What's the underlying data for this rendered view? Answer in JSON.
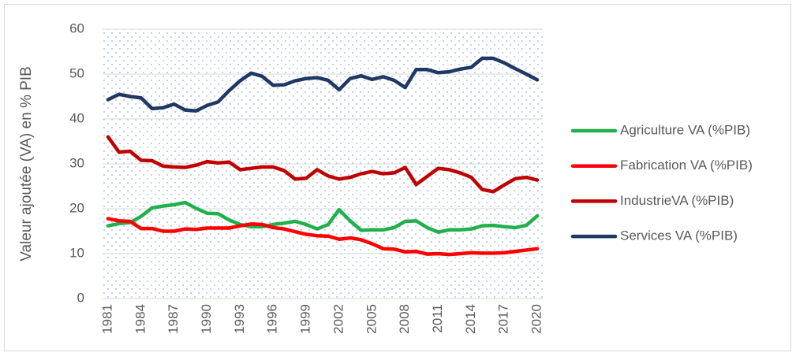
{
  "chart_data": {
    "type": "line",
    "y_label": "Valeur ajoutée (VA) en % PIB",
    "categories": [
      1981,
      null,
      null,
      1984,
      null,
      null,
      1987,
      null,
      null,
      1990,
      null,
      null,
      1993,
      null,
      null,
      1996,
      null,
      null,
      1999,
      null,
      null,
      2002,
      null,
      null,
      2005,
      null,
      null,
      2008,
      null,
      null,
      2011,
      null,
      null,
      2014,
      null,
      null,
      2017,
      null,
      null,
      2020
    ],
    "series": [
      {
        "name": "Agriculture VA (%PIB)",
        "color": "#21b04b",
        "values": [
          16.2,
          16.7,
          16.9,
          18.3,
          20.2,
          20.6,
          20.9,
          21.4,
          20.1,
          19.0,
          18.9,
          17.5,
          16.5,
          16.0,
          16.0,
          16.5,
          16.8,
          17.2,
          16.5,
          15.5,
          16.5,
          19.8,
          17.3,
          15.2,
          15.3,
          15.3,
          15.8,
          17.2,
          17.3,
          15.8,
          14.8,
          15.3,
          15.3,
          15.5,
          16.2,
          16.3,
          16.0,
          15.8,
          16.3,
          18.4
        ]
      },
      {
        "name": "Fabrication VA (%PIB)",
        "color": "#ff0000",
        "values": [
          17.8,
          17.3,
          17.2,
          15.6,
          15.6,
          15.0,
          15.0,
          15.5,
          15.4,
          15.7,
          15.7,
          15.7,
          16.2,
          16.6,
          16.5,
          15.8,
          15.5,
          14.9,
          14.3,
          14.0,
          13.9,
          13.2,
          13.5,
          13.1,
          12.2,
          11.1,
          11.0,
          10.4,
          10.5,
          9.9,
          10.0,
          9.8,
          10.0,
          10.2,
          10.1,
          10.1,
          10.2,
          10.5,
          10.8,
          11.1
        ]
      },
      {
        "name": "IndustrieVA (%PIB)",
        "color": "#c00000",
        "values": [
          36.0,
          32.6,
          32.8,
          30.8,
          30.7,
          29.5,
          29.3,
          29.2,
          29.7,
          30.5,
          30.2,
          30.4,
          28.7,
          29.0,
          29.3,
          29.3,
          28.5,
          26.6,
          26.8,
          28.7,
          27.3,
          26.6,
          27.0,
          27.8,
          28.3,
          27.8,
          28.0,
          29.2,
          25.4,
          27.2,
          29.0,
          28.7,
          28.0,
          27.0,
          24.3,
          23.8,
          25.3,
          26.7,
          27.0,
          26.4
        ]
      },
      {
        "name": "Services VA (%PIB)",
        "color": "#1f3864",
        "values": [
          44.3,
          45.5,
          45.0,
          44.7,
          42.3,
          42.5,
          43.3,
          42.0,
          41.8,
          43.0,
          43.8,
          46.3,
          48.5,
          50.2,
          49.5,
          47.5,
          47.6,
          48.5,
          49.0,
          49.2,
          48.6,
          46.5,
          49.0,
          49.6,
          48.8,
          49.4,
          48.6,
          47.0,
          51.0,
          51.0,
          50.3,
          50.5,
          51.1,
          51.5,
          53.5,
          53.5,
          52.5,
          51.2,
          50.0,
          48.7
        ]
      }
    ],
    "ylim": [
      0,
      60
    ],
    "yticks": [
      0,
      10,
      20,
      30,
      40,
      50,
      60
    ],
    "grid": true,
    "legend": "right"
  }
}
